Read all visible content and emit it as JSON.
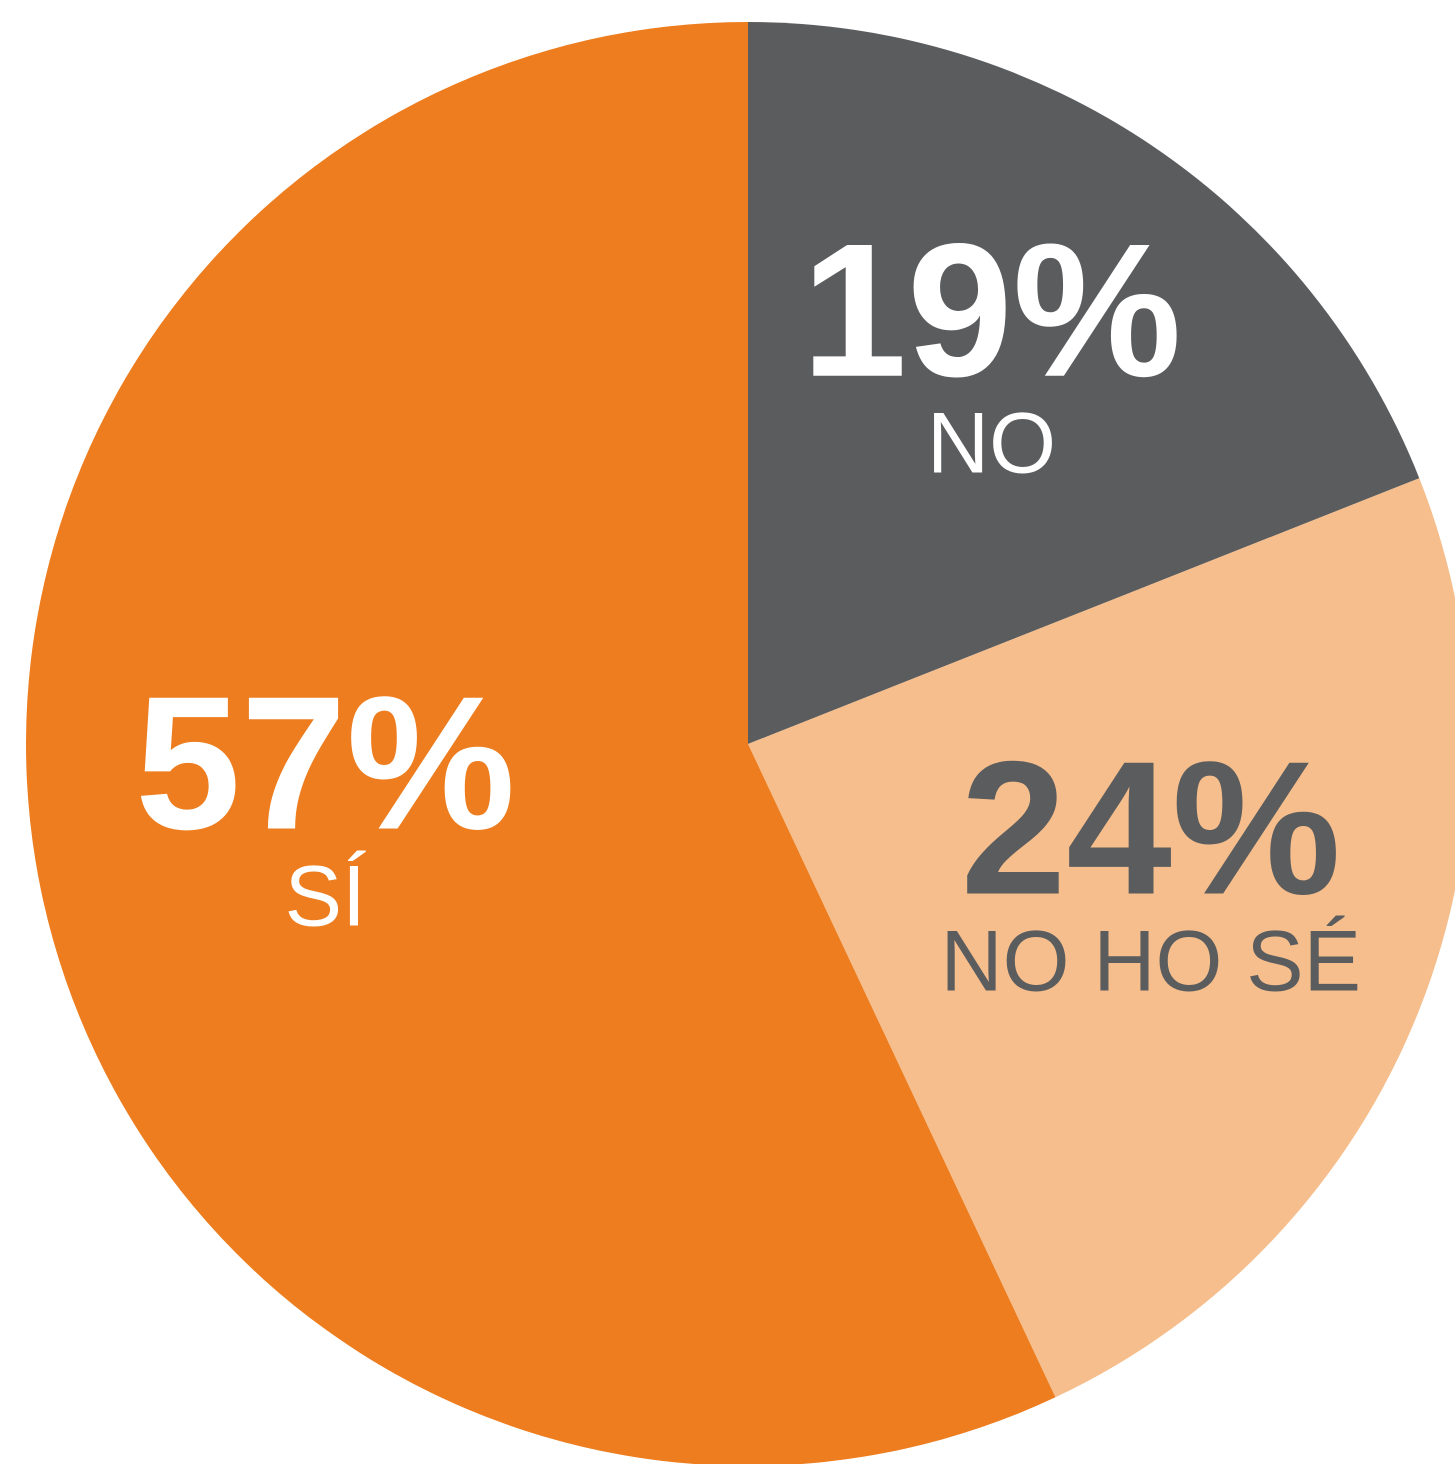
{
  "chart_data": {
    "type": "pie",
    "categories": [
      "NO",
      "NO HO SÉ",
      "SÍ"
    ],
    "values": [
      19,
      24,
      57
    ],
    "value_labels": [
      "19%",
      "24%",
      "57%"
    ],
    "colors": [
      "#5b5c5e",
      "#f5be8c",
      "#ed7d1e"
    ],
    "label_colors": [
      "#ffffff",
      "#5b5c5e",
      "#ffffff"
    ]
  }
}
